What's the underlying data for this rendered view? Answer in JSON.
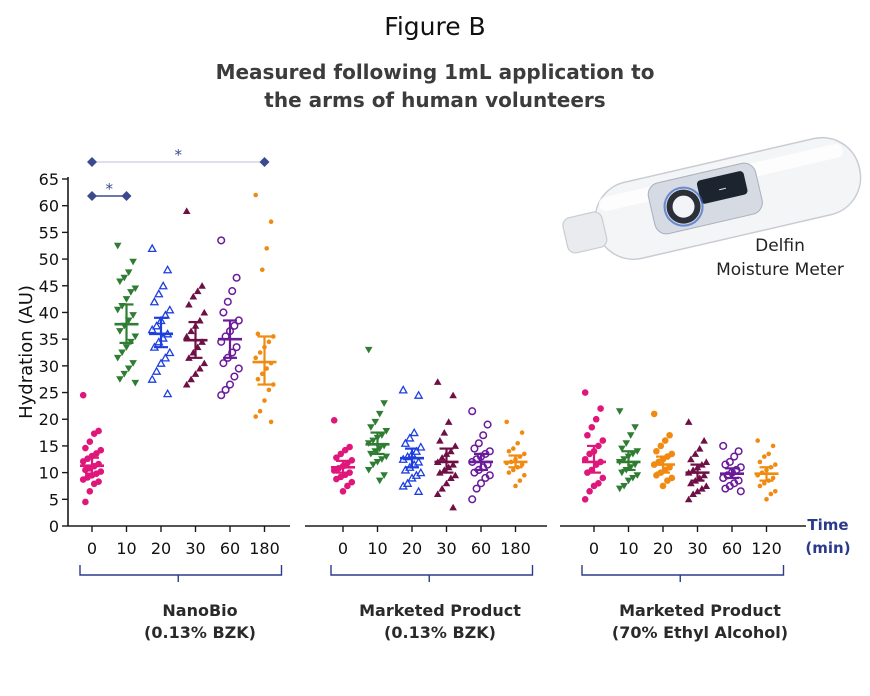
{
  "figure_label": "Figure B",
  "title_line1": "Measured following 1mL application to",
  "title_line2": "the arms of human volunteers",
  "device": {
    "name_line1": "Delfin",
    "name_line2": "Moisture Meter",
    "icon": "moisture-meter-device-icon"
  },
  "colors": {
    "t0": "#e0177b",
    "t10": "#2e7d32",
    "t20": "#1e3fe0",
    "t30": "#6e1045",
    "t60": "#6a1b9a",
    "t_last": "#f08a10",
    "axis": "#1a1a1a",
    "bracket": "#2c3a8c",
    "significance": "#3b4a8f"
  },
  "time_label_line1": "Time",
  "time_label_line2": "(min)",
  "significance_marks": [
    {
      "from": "0",
      "to": "10",
      "label": "*"
    },
    {
      "from": "0",
      "to": "180",
      "label": "*"
    }
  ],
  "chart_data": {
    "type": "scatter",
    "ylabel": "Hydration (AU)",
    "ylim": [
      0,
      65
    ],
    "yticks": [
      0,
      5,
      10,
      15,
      20,
      25,
      30,
      35,
      40,
      45,
      50,
      55,
      60,
      65
    ],
    "groups": [
      {
        "name_line1": "NanoBio",
        "name_line2": "(0.13% BZK)",
        "series": [
          {
            "time": "0",
            "color_key": "t0",
            "marker": "circle",
            "mean": 11.3,
            "ci": [
              9.8,
              12.8
            ],
            "values": [
              24.5,
              17.8,
              17.3,
              15.8,
              14.6,
              14.2,
              13.6,
              13.1,
              12.6,
              12.1,
              11.6,
              11.2,
              10.8,
              10.5,
              10.2,
              9.8,
              9.5,
              9.1,
              8.7,
              8.3,
              7.9,
              6.5,
              4.5
            ]
          },
          {
            "time": "10",
            "color_key": "t10",
            "marker": "triangle-down",
            "mean": 37.8,
            "ci": [
              34.3,
              41.5
            ],
            "values": [
              52.5,
              49.5,
              47.5,
              46.5,
              45.8,
              44.5,
              43.8,
              42.5,
              41.2,
              40.5,
              39.5,
              38.5,
              37.5,
              36.5,
              35.5,
              34.5,
              33.5,
              32.5,
              31.5,
              30.5,
              29.5,
              28.5,
              27.5,
              26.8
            ]
          },
          {
            "time": "20",
            "color_key": "t20",
            "marker": "triangle-up-open",
            "mean": 36.0,
            "ci": [
              33.5,
              39.0
            ],
            "values": [
              52.0,
              48.0,
              45.0,
              43.5,
              42.0,
              40.5,
              39.5,
              38.5,
              37.5,
              36.8,
              36.0,
              35.2,
              34.5,
              33.5,
              32.5,
              31.5,
              30.5,
              29.0,
              27.5,
              24.8
            ]
          },
          {
            "time": "30",
            "color_key": "t30",
            "marker": "triangle-up",
            "mean": 34.8,
            "ci": [
              31.5,
              38.2
            ],
            "values": [
              59.0,
              45.0,
              44.0,
              43.0,
              41.5,
              40.0,
              38.5,
              37.5,
              36.5,
              35.5,
              34.5,
              33.5,
              32.5,
              31.5,
              30.5,
              29.5,
              28.5,
              27.5,
              26.5
            ]
          },
          {
            "time": "60",
            "color_key": "t60",
            "marker": "circle-open",
            "mean": 35.0,
            "ci": [
              31.5,
              38.5
            ],
            "values": [
              53.5,
              46.5,
              44.0,
              42.0,
              40.0,
              38.5,
              37.5,
              36.5,
              35.5,
              34.5,
              33.5,
              32.5,
              31.5,
              30.5,
              29.5,
              28.0,
              26.5,
              25.5,
              24.5
            ]
          },
          {
            "time": "180",
            "color_key": "t_last",
            "marker": "dot",
            "mean": 30.7,
            "ci": [
              26.5,
              35.5
            ],
            "values": [
              62.0,
              57.0,
              52.0,
              48.0,
              36.0,
              35.5,
              34.5,
              33.5,
              32.5,
              31.5,
              30.5,
              29.5,
              28.5,
              27.5,
              26.5,
              25.5,
              23.5,
              21.5,
              20.5,
              19.5
            ]
          }
        ]
      },
      {
        "name_line1": "Marketed Product",
        "name_line2": "(0.13% BZK)",
        "series": [
          {
            "time": "0",
            "color_key": "t0",
            "marker": "circle",
            "mean": 11.0,
            "ci": [
              10.0,
              12.2
            ],
            "values": [
              19.8,
              14.8,
              14.2,
              13.5,
              12.8,
              12.3,
              11.8,
              11.2,
              10.8,
              10.4,
              10.0,
              9.6,
              9.2,
              8.8,
              8.2,
              7.5,
              6.5
            ]
          },
          {
            "time": "10",
            "color_key": "t10",
            "marker": "triangle-down",
            "mean": 15.3,
            "ci": [
              13.5,
              17.5
            ],
            "values": [
              33.0,
              23.0,
              21.0,
              19.5,
              18.5,
              17.8,
              17.0,
              16.5,
              16.0,
              15.5,
              15.0,
              14.5,
              14.0,
              13.5,
              13.0,
              12.5,
              12.0,
              11.5,
              10.5,
              9.5,
              8.5
            ]
          },
          {
            "time": "20",
            "color_key": "t20",
            "marker": "triangle-up-open",
            "mean": 12.7,
            "ci": [
              11.0,
              14.5
            ],
            "values": [
              25.5,
              24.5,
              17.5,
              16.5,
              15.5,
              14.8,
              14.0,
              13.5,
              13.0,
              12.5,
              12.0,
              11.5,
              11.0,
              10.5,
              10.0,
              9.5,
              9.0,
              8.0,
              7.5,
              6.5
            ]
          },
          {
            "time": "30",
            "color_key": "t30",
            "marker": "triangle-up",
            "mean": 12.0,
            "ci": [
              10.0,
              14.5
            ],
            "values": [
              27.0,
              24.5,
              19.5,
              17.5,
              16.0,
              15.0,
              14.0,
              13.5,
              12.8,
              12.0,
              11.5,
              11.0,
              10.5,
              10.0,
              9.5,
              9.0,
              8.0,
              7.0,
              6.0,
              3.5
            ]
          },
          {
            "time": "60",
            "color_key": "t60",
            "marker": "circle-open",
            "mean": 12.0,
            "ci": [
              10.5,
              13.5
            ],
            "values": [
              21.5,
              19.0,
              17.0,
              15.5,
              14.5,
              14.0,
              13.5,
              13.0,
              12.5,
              12.0,
              11.5,
              11.0,
              10.5,
              10.0,
              9.5,
              9.0,
              8.0,
              7.0,
              5.0
            ]
          },
          {
            "time": "180",
            "color_key": "t_last",
            "marker": "dot",
            "mean": 12.0,
            "ci": [
              11.0,
              13.2
            ],
            "values": [
              19.5,
              17.5,
              15.5,
              14.5,
              14.0,
              13.5,
              13.0,
              12.5,
              12.0,
              11.8,
              11.5,
              11.0,
              10.5,
              10.0,
              9.5,
              8.5,
              7.5
            ]
          }
        ]
      },
      {
        "name_line1": "Marketed Product",
        "name_line2": "(70% Ethyl Alcohol)",
        "series": [
          {
            "time": "0",
            "color_key": "t0",
            "marker": "circle",
            "mean": 12.0,
            "ci": [
              10.0,
              15.0
            ],
            "values": [
              25.0,
              22.0,
              20.0,
              18.5,
              17.0,
              16.0,
              15.0,
              14.0,
              13.5,
              12.5,
              12.0,
              11.5,
              10.5,
              10.0,
              9.0,
              8.0,
              7.5,
              6.5,
              5.0
            ]
          },
          {
            "time": "10",
            "color_key": "t10",
            "marker": "triangle-down",
            "mean": 12.0,
            "ci": [
              10.5,
              14.0
            ],
            "values": [
              21.5,
              18.5,
              17.0,
              15.5,
              14.5,
              14.0,
              13.5,
              13.0,
              12.5,
              12.0,
              11.5,
              11.0,
              10.5,
              10.0,
              9.5,
              9.0,
              8.5,
              7.5,
              7.0
            ]
          },
          {
            "time": "20",
            "color_key": "t_last",
            "marker": "circle",
            "mean": 11.5,
            "ci": [
              10.0,
              13.0
            ],
            "values": [
              21.0,
              17.0,
              16.0,
              15.0,
              14.0,
              13.5,
              13.0,
              12.5,
              12.0,
              11.5,
              11.0,
              10.5,
              10.0,
              9.5,
              9.0,
              8.5,
              7.5
            ]
          },
          {
            "time": "30",
            "color_key": "t30",
            "marker": "triangle-up",
            "mean": 10.0,
            "ci": [
              8.5,
              11.5
            ],
            "values": [
              19.5,
              16.0,
              14.5,
              13.5,
              12.5,
              12.0,
              11.5,
              11.0,
              10.5,
              10.0,
              9.5,
              9.0,
              8.5,
              8.0,
              7.5,
              7.0,
              6.5,
              6.0,
              5.0
            ]
          },
          {
            "time": "60",
            "color_key": "t60",
            "marker": "circle-open",
            "mean": 9.8,
            "ci": [
              9.0,
              10.8
            ],
            "values": [
              15.0,
              14.0,
              13.0,
              12.0,
              11.5,
              11.0,
              10.5,
              10.0,
              9.5,
              9.0,
              8.5,
              8.0,
              7.5,
              7.0,
              6.5
            ]
          },
          {
            "time": "120",
            "color_key": "t_last",
            "marker": "dot",
            "mean": 9.8,
            "ci": [
              8.5,
              11.0
            ],
            "values": [
              16.0,
              15.0,
              13.5,
              13.0,
              12.0,
              11.5,
              11.0,
              10.5,
              10.0,
              9.5,
              9.0,
              8.5,
              8.0,
              7.5,
              6.5,
              6.0,
              5.0
            ]
          }
        ]
      }
    ]
  }
}
